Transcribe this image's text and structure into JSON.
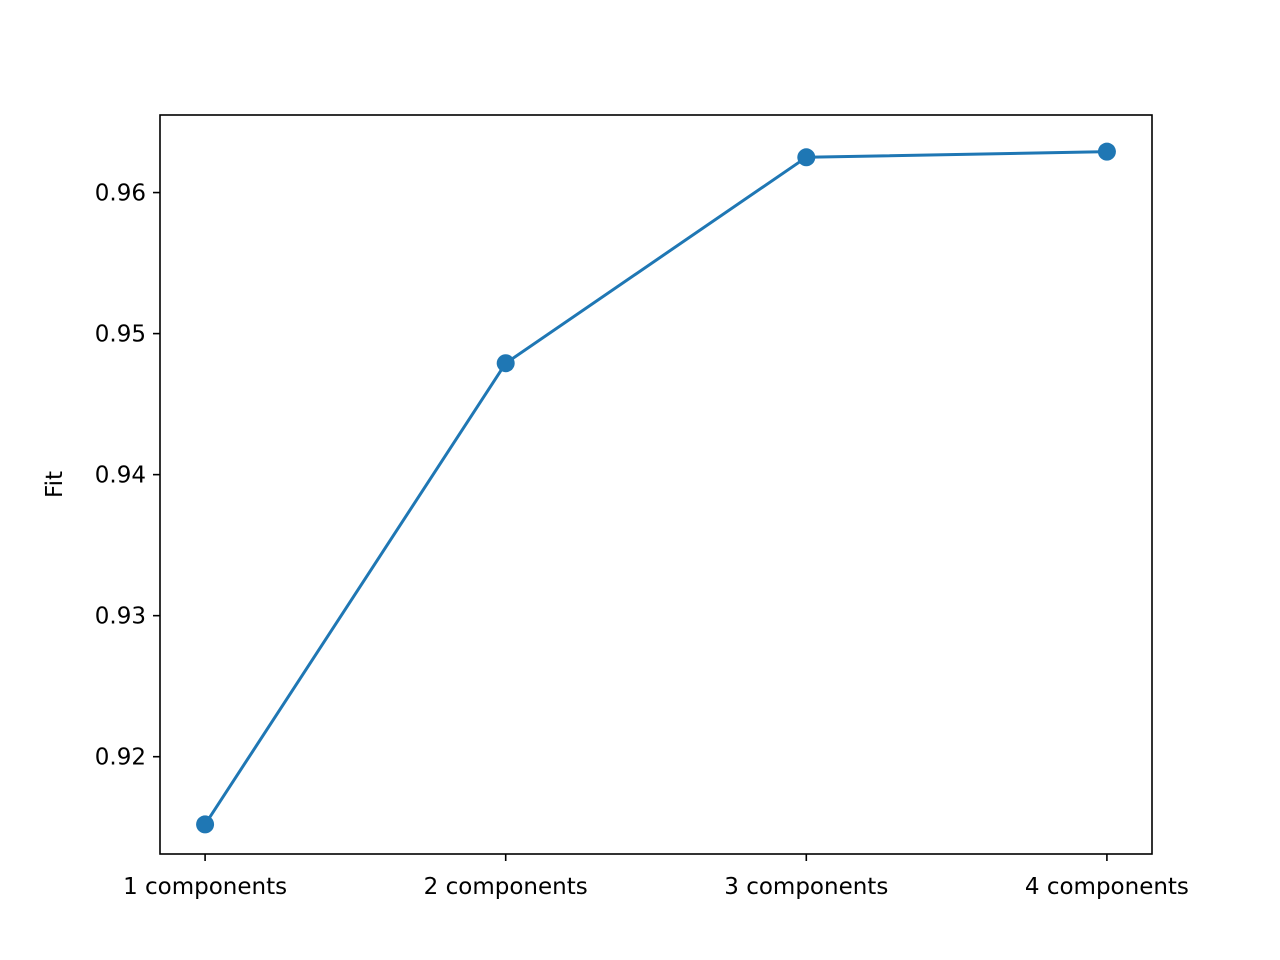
{
  "chart_data": {
    "type": "line",
    "title": "",
    "xlabel": "",
    "ylabel": "Fit",
    "categories": [
      "1 components",
      "2 components",
      "3 components",
      "4 components"
    ],
    "series": [
      {
        "values": [
          0.9152,
          0.9479,
          0.9625,
          0.9629
        ],
        "color": "#1f77b4",
        "marker": "circle"
      }
    ],
    "ylim": [
      0.9131,
      0.9655
    ],
    "yticks": [
      0.92,
      0.93,
      0.94,
      0.95,
      0.96
    ],
    "ytick_labels": [
      "0.92",
      "0.93",
      "0.94",
      "0.95",
      "0.96"
    ],
    "grid": false,
    "legend": "none",
    "colors": {
      "series": "#1f77b4",
      "axes": "#000000",
      "background": "#ffffff"
    }
  }
}
